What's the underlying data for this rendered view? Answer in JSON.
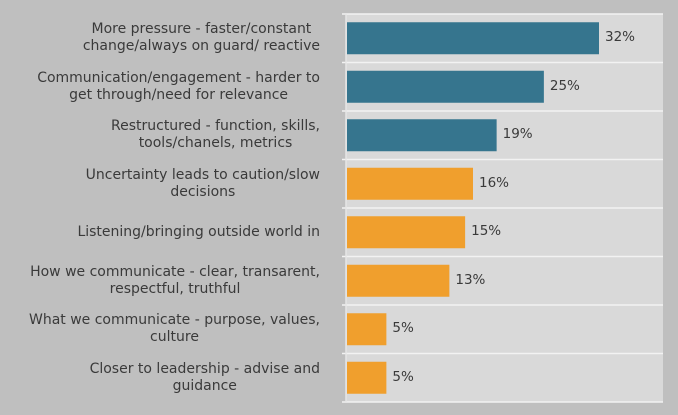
{
  "chart_data": {
    "type": "bar",
    "orientation": "horizontal",
    "title": "",
    "xlabel": "",
    "ylabel": "",
    "xlim": [
      0,
      40
    ],
    "grid": true,
    "legend": "none",
    "categories": [
      "More pressure -  faster/constant change/always on guard/ reactive",
      "Communication/engagement - harder to get through/need for relevance",
      "Restructured - function, skills, tools/chanels, metrics",
      "Uncertainty leads to caution/slow decisions",
      "Listening/bringing outside world in",
      "How we communicate -  clear, transarent, respectful, truthful",
      "What we communicate - purpose, values, culture",
      "Closer to leadership - advise and guidance"
    ],
    "label_lines": [
      [
        "More pressure -  faster/constant",
        "change/always on guard/ reactive"
      ],
      [
        "Communication/engagement - harder to",
        "get through/need for relevance"
      ],
      [
        "Restructured - function, skills,",
        "tools/chanels, metrics"
      ],
      [
        "Uncertainty leads to caution/slow",
        "decisions"
      ],
      [
        "Listening/bringing outside world in"
      ],
      [
        "How we communicate -  clear, transarent,",
        "respectful, truthful"
      ],
      [
        "What we communicate - purpose, values,",
        "culture"
      ],
      [
        "Closer to leadership - advise and",
        "guidance"
      ]
    ],
    "values": [
      32,
      25,
      19,
      16,
      15,
      13,
      5,
      5
    ],
    "value_labels": [
      "32%",
      "25%",
      "19%",
      "16%",
      "15%",
      "13%",
      "5%",
      "5%"
    ],
    "groups": [
      "teal",
      "teal",
      "teal",
      "orange",
      "orange",
      "orange",
      "orange",
      "orange"
    ]
  },
  "colors": {
    "teal": "#36758e",
    "orange": "#f09f2d",
    "plot_bg": "#d9d9d9",
    "page_bg": "#bfbfbf",
    "grid": "#f2f2f2"
  }
}
